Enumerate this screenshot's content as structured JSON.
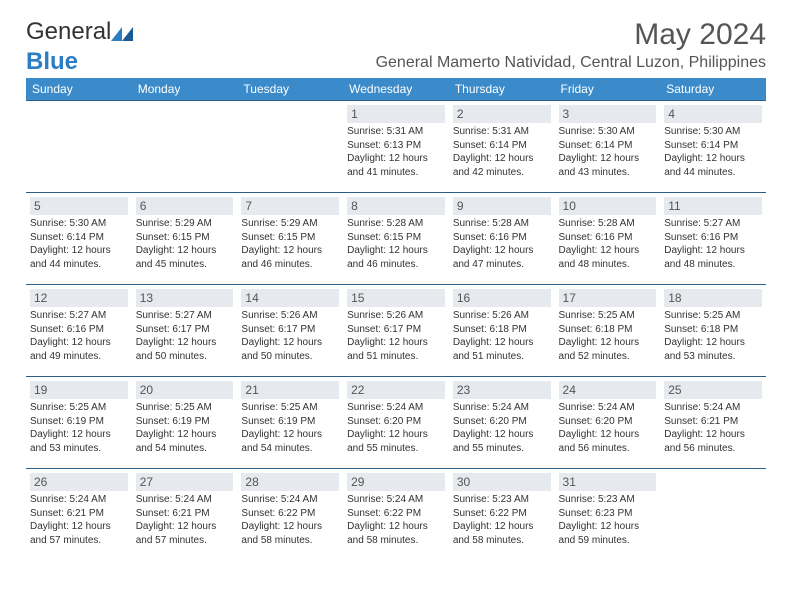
{
  "logo": {
    "part1": "General",
    "part2": "Blue"
  },
  "title": "May 2024",
  "location": "General Mamerto Natividad, Central Luzon, Philippines",
  "colors": {
    "header_bg": "#3b8bca",
    "header_text": "#ffffff",
    "daynum_bg": "#e6eaee",
    "row_border": "#2b5f8a",
    "title_text": "#555555",
    "body_text": "#333333",
    "logo_blue": "#2b7dc4"
  },
  "day_headers": [
    "Sunday",
    "Monday",
    "Tuesday",
    "Wednesday",
    "Thursday",
    "Friday",
    "Saturday"
  ],
  "cells": [
    {
      "day": "",
      "lines": []
    },
    {
      "day": "",
      "lines": []
    },
    {
      "day": "",
      "lines": []
    },
    {
      "day": "1",
      "lines": [
        "Sunrise: 5:31 AM",
        "Sunset: 6:13 PM",
        "Daylight: 12 hours and 41 minutes."
      ]
    },
    {
      "day": "2",
      "lines": [
        "Sunrise: 5:31 AM",
        "Sunset: 6:14 PM",
        "Daylight: 12 hours and 42 minutes."
      ]
    },
    {
      "day": "3",
      "lines": [
        "Sunrise: 5:30 AM",
        "Sunset: 6:14 PM",
        "Daylight: 12 hours and 43 minutes."
      ]
    },
    {
      "day": "4",
      "lines": [
        "Sunrise: 5:30 AM",
        "Sunset: 6:14 PM",
        "Daylight: 12 hours and 44 minutes."
      ]
    },
    {
      "day": "5",
      "lines": [
        "Sunrise: 5:30 AM",
        "Sunset: 6:14 PM",
        "Daylight: 12 hours and 44 minutes."
      ]
    },
    {
      "day": "6",
      "lines": [
        "Sunrise: 5:29 AM",
        "Sunset: 6:15 PM",
        "Daylight: 12 hours and 45 minutes."
      ]
    },
    {
      "day": "7",
      "lines": [
        "Sunrise: 5:29 AM",
        "Sunset: 6:15 PM",
        "Daylight: 12 hours and 46 minutes."
      ]
    },
    {
      "day": "8",
      "lines": [
        "Sunrise: 5:28 AM",
        "Sunset: 6:15 PM",
        "Daylight: 12 hours and 46 minutes."
      ]
    },
    {
      "day": "9",
      "lines": [
        "Sunrise: 5:28 AM",
        "Sunset: 6:16 PM",
        "Daylight: 12 hours and 47 minutes."
      ]
    },
    {
      "day": "10",
      "lines": [
        "Sunrise: 5:28 AM",
        "Sunset: 6:16 PM",
        "Daylight: 12 hours and 48 minutes."
      ]
    },
    {
      "day": "11",
      "lines": [
        "Sunrise: 5:27 AM",
        "Sunset: 6:16 PM",
        "Daylight: 12 hours and 48 minutes."
      ]
    },
    {
      "day": "12",
      "lines": [
        "Sunrise: 5:27 AM",
        "Sunset: 6:16 PM",
        "Daylight: 12 hours and 49 minutes."
      ]
    },
    {
      "day": "13",
      "lines": [
        "Sunrise: 5:27 AM",
        "Sunset: 6:17 PM",
        "Daylight: 12 hours and 50 minutes."
      ]
    },
    {
      "day": "14",
      "lines": [
        "Sunrise: 5:26 AM",
        "Sunset: 6:17 PM",
        "Daylight: 12 hours and 50 minutes."
      ]
    },
    {
      "day": "15",
      "lines": [
        "Sunrise: 5:26 AM",
        "Sunset: 6:17 PM",
        "Daylight: 12 hours and 51 minutes."
      ]
    },
    {
      "day": "16",
      "lines": [
        "Sunrise: 5:26 AM",
        "Sunset: 6:18 PM",
        "Daylight: 12 hours and 51 minutes."
      ]
    },
    {
      "day": "17",
      "lines": [
        "Sunrise: 5:25 AM",
        "Sunset: 6:18 PM",
        "Daylight: 12 hours and 52 minutes."
      ]
    },
    {
      "day": "18",
      "lines": [
        "Sunrise: 5:25 AM",
        "Sunset: 6:18 PM",
        "Daylight: 12 hours and 53 minutes."
      ]
    },
    {
      "day": "19",
      "lines": [
        "Sunrise: 5:25 AM",
        "Sunset: 6:19 PM",
        "Daylight: 12 hours and 53 minutes."
      ]
    },
    {
      "day": "20",
      "lines": [
        "Sunrise: 5:25 AM",
        "Sunset: 6:19 PM",
        "Daylight: 12 hours and 54 minutes."
      ]
    },
    {
      "day": "21",
      "lines": [
        "Sunrise: 5:25 AM",
        "Sunset: 6:19 PM",
        "Daylight: 12 hours and 54 minutes."
      ]
    },
    {
      "day": "22",
      "lines": [
        "Sunrise: 5:24 AM",
        "Sunset: 6:20 PM",
        "Daylight: 12 hours and 55 minutes."
      ]
    },
    {
      "day": "23",
      "lines": [
        "Sunrise: 5:24 AM",
        "Sunset: 6:20 PM",
        "Daylight: 12 hours and 55 minutes."
      ]
    },
    {
      "day": "24",
      "lines": [
        "Sunrise: 5:24 AM",
        "Sunset: 6:20 PM",
        "Daylight: 12 hours and 56 minutes."
      ]
    },
    {
      "day": "25",
      "lines": [
        "Sunrise: 5:24 AM",
        "Sunset: 6:21 PM",
        "Daylight: 12 hours and 56 minutes."
      ]
    },
    {
      "day": "26",
      "lines": [
        "Sunrise: 5:24 AM",
        "Sunset: 6:21 PM",
        "Daylight: 12 hours and 57 minutes."
      ]
    },
    {
      "day": "27",
      "lines": [
        "Sunrise: 5:24 AM",
        "Sunset: 6:21 PM",
        "Daylight: 12 hours and 57 minutes."
      ]
    },
    {
      "day": "28",
      "lines": [
        "Sunrise: 5:24 AM",
        "Sunset: 6:22 PM",
        "Daylight: 12 hours and 58 minutes."
      ]
    },
    {
      "day": "29",
      "lines": [
        "Sunrise: 5:24 AM",
        "Sunset: 6:22 PM",
        "Daylight: 12 hours and 58 minutes."
      ]
    },
    {
      "day": "30",
      "lines": [
        "Sunrise: 5:23 AM",
        "Sunset: 6:22 PM",
        "Daylight: 12 hours and 58 minutes."
      ]
    },
    {
      "day": "31",
      "lines": [
        "Sunrise: 5:23 AM",
        "Sunset: 6:23 PM",
        "Daylight: 12 hours and 59 minutes."
      ]
    },
    {
      "day": "",
      "lines": []
    }
  ]
}
